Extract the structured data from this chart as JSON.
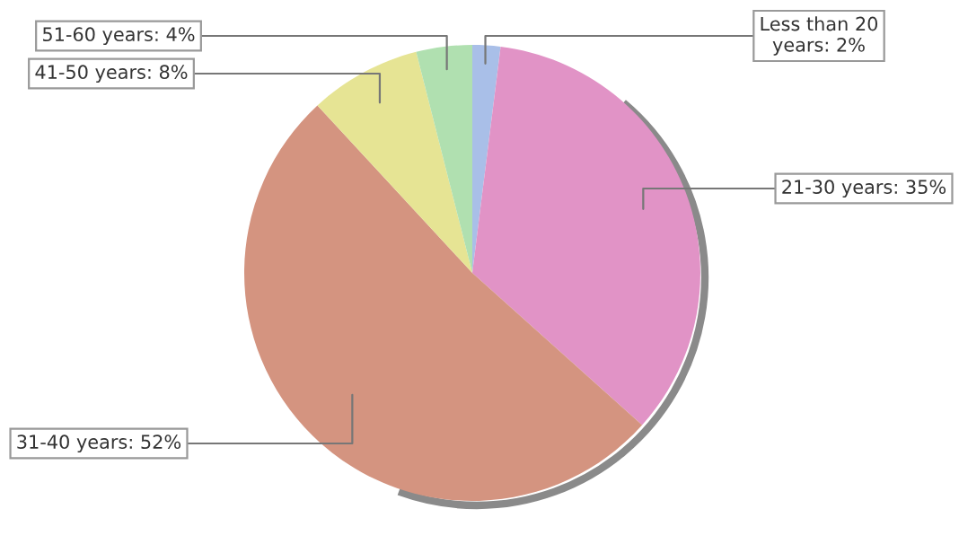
{
  "chart_data": {
    "type": "pie",
    "categories": [
      "Less than 20 years",
      "21-30 years",
      "31-40 years",
      "41-50 years",
      "51-60 years"
    ],
    "values": [
      2,
      35,
      52,
      8,
      4
    ],
    "value_labels": [
      "2%",
      "35%",
      "52%",
      "8%",
      "4%"
    ],
    "colors": [
      "#a9bfe8",
      "#e193c6",
      "#d49480",
      "#e6e494",
      "#b0e0b0"
    ],
    "legend": false
  }
}
